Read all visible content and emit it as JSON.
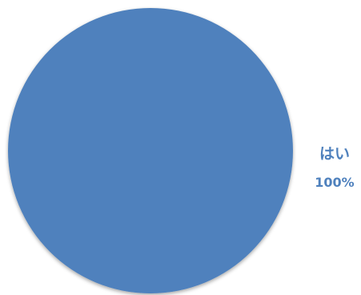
{
  "chart_data": {
    "type": "pie",
    "title": "",
    "slices": [
      {
        "label": "はい",
        "value": 100,
        "value_label": "100%",
        "color": "#4F81BD"
      }
    ],
    "data_labels": {
      "position": "outside-right",
      "color": "#4F81BD"
    },
    "legend": "none"
  }
}
